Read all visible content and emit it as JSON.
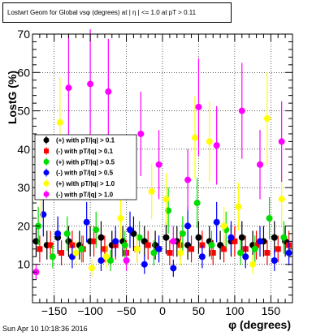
{
  "chart_data": {
    "type": "scatter",
    "title": "Lostwrt Geom for Global vsφ (degrees) at | η | <= 1.0 at pT > 0.11",
    "xlabel": "φ (degrees)",
    "ylabel": "LostG (%)",
    "xlim": [
      -180,
      180
    ],
    "ylim": [
      0,
      70
    ],
    "x_ticks": [
      -150,
      -100,
      -50,
      0,
      50,
      100,
      150
    ],
    "y_ticks": [
      10,
      20,
      30,
      40,
      50,
      60,
      70
    ],
    "grid": true,
    "legend_position": "left-middle",
    "series": [
      {
        "name": "(+) with pT/|q| > 0.1",
        "color": "#000000",
        "marker": "circle",
        "x": [
          -175,
          -160,
          -145,
          -130,
          -115,
          -100,
          -85,
          -70,
          -55,
          -40,
          -25,
          -10,
          5,
          20,
          35,
          50,
          65,
          80,
          95,
          110,
          125,
          140,
          155,
          170
        ],
        "y": [
          16,
          15,
          17,
          16,
          15,
          16,
          17,
          15,
          16,
          18,
          16,
          15,
          17,
          16,
          15,
          17,
          16,
          15,
          16,
          17,
          15,
          16,
          17,
          16
        ]
      },
      {
        "name": "(-) with pT/|q| > 0.1",
        "color": "#ff0000",
        "marker": "square",
        "x": [
          -170,
          -155,
          -140,
          -125,
          -110,
          -95,
          -80,
          -65,
          -50,
          -35,
          -20,
          -5,
          10,
          25,
          40,
          55,
          70,
          85,
          100,
          115,
          130,
          145,
          160,
          175
        ],
        "y": [
          14,
          15,
          13,
          15,
          14,
          16,
          14,
          15,
          13,
          14,
          15,
          14,
          13,
          15,
          14,
          15,
          13,
          14,
          16,
          14,
          15,
          13,
          14,
          15
        ]
      },
      {
        "name": "(+) with pT/|q| > 0.5",
        "color": "#00dd00",
        "marker": "circle",
        "x": [
          -172,
          -152,
          -132,
          -112,
          -92,
          -72,
          -52,
          -32,
          -12,
          8,
          28,
          48,
          68,
          88,
          108,
          128,
          148,
          168
        ],
        "y": [
          20,
          12,
          18,
          14,
          19,
          11,
          15,
          17,
          13,
          24,
          18,
          26,
          15,
          19,
          13,
          14,
          22,
          17
        ]
      },
      {
        "name": "(-) with pT/|q| > 0.5",
        "color": "#0000ff",
        "marker": "circle",
        "x": [
          -165,
          -145,
          -125,
          -105,
          -85,
          -65,
          -45,
          -25,
          -5,
          15,
          35,
          55,
          75,
          95,
          115,
          135,
          155,
          175
        ],
        "y": [
          23,
          18,
          12,
          21,
          11,
          16,
          19,
          10,
          14,
          9,
          20,
          12,
          21,
          17,
          12,
          16,
          11,
          13
        ]
      },
      {
        "name": "(+) with pT/|q| > 1.0",
        "color": "#ffff00",
        "marker": "circle",
        "x": [
          -168,
          -142,
          -120,
          -98,
          -78,
          -58,
          -35,
          -15,
          5,
          25,
          45,
          65,
          85,
          105,
          125,
          145,
          165
        ],
        "y": [
          28,
          47,
          13,
          9,
          12,
          22,
          14,
          29,
          27,
          13,
          43,
          42,
          20,
          25,
          10,
          48,
          27
        ]
      },
      {
        "name": "(-) with pT/|q| > 1.0",
        "color": "#ff00ff",
        "marker": "circle",
        "x": [
          -175,
          -130,
          -100,
          -75,
          -50,
          -30,
          -5,
          15,
          35,
          50,
          75,
          110,
          135,
          165
        ],
        "y": [
          8,
          56,
          57,
          55,
          11,
          44,
          36,
          16,
          32,
          51,
          41,
          50,
          36,
          42
        ]
      }
    ]
  },
  "footer": {
    "timestamp": "Sun Apr 10 10:18:36 2016"
  }
}
